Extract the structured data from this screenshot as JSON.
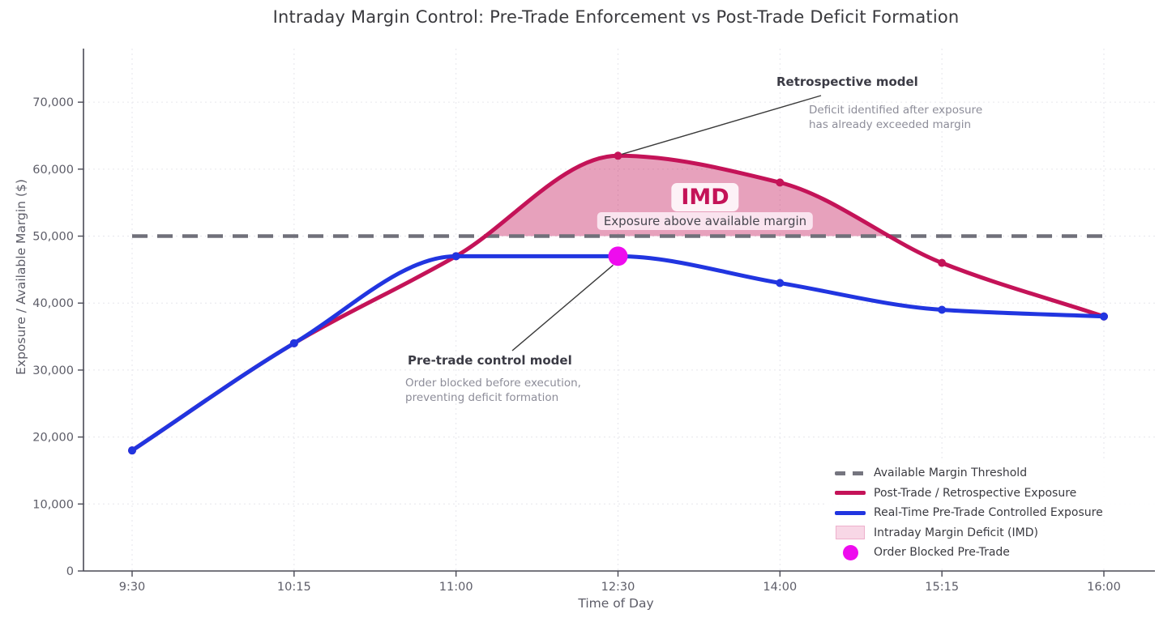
{
  "title": "Intraday Margin Control: Pre-Trade Enforcement vs Post-Trade Deficit Formation",
  "chart_data": {
    "type": "line",
    "title": "Intraday Margin Control: Pre-Trade Enforcement vs Post-Trade Deficit Formation",
    "xlabel": "Time of Day",
    "ylabel": "Exposure / Available Margin ($)",
    "categories": [
      "9:30",
      "10:15",
      "11:00",
      "12:30",
      "14:00",
      "15:15",
      "16:00"
    ],
    "y_ticks": [
      {
        "value": 0,
        "label": "0"
      },
      {
        "value": 10000,
        "label": "10,000"
      },
      {
        "value": 20000,
        "label": "20,000"
      },
      {
        "value": 30000,
        "label": "30,000"
      },
      {
        "value": 40000,
        "label": "40,000"
      },
      {
        "value": 50000,
        "label": "50,000"
      },
      {
        "value": 60000,
        "label": "60,000"
      },
      {
        "value": 70000,
        "label": "70,000"
      }
    ],
    "ylim": [
      0,
      78000
    ],
    "grid": true,
    "legend_position": "lower right",
    "threshold": {
      "value": 50000,
      "label": "Available Margin Threshold",
      "color": "#70707a"
    },
    "series": [
      {
        "name": "Post-Trade / Retrospective Exposure",
        "color": "#c41358",
        "values": [
          18000,
          34000,
          47000,
          62000,
          58000,
          46000,
          38000
        ]
      },
      {
        "name": "Real-Time Pre-Trade Controlled Exposure",
        "color": "#2135e0",
        "values": [
          18000,
          34000,
          47000,
          47000,
          43000,
          39000,
          38000
        ]
      }
    ],
    "deficit_fill": {
      "label": "Intraday Margin Deficit (IMD)",
      "color": "rgba(196,19,88,0.40)"
    },
    "blocked_point": {
      "label": "Order Blocked Pre-Trade",
      "time": "12:30",
      "value": 47000,
      "color": "#ee0cee"
    },
    "legend": [
      {
        "label": "Available Margin Threshold",
        "swatch": "dashed-line",
        "color": "#75757f"
      },
      {
        "label": "Post-Trade / Retrospective Exposure",
        "swatch": "line",
        "color": "#c41358"
      },
      {
        "label": "Real-Time Pre-Trade Controlled Exposure",
        "swatch": "line",
        "color": "#2135e0"
      },
      {
        "label": "Intraday Margin Deficit (IMD)",
        "swatch": "rect",
        "color": "#f8d7e6"
      },
      {
        "label": "Order Blocked Pre-Trade",
        "swatch": "dot",
        "color": "#ee0cee"
      }
    ],
    "annotations": [
      {
        "id": "retrospective",
        "title": "Retrospective model",
        "body": "Deficit identified after exposure\nhas already exceeded margin",
        "target_time": "12:30",
        "target_value": 62000
      },
      {
        "id": "pretrade",
        "title": "Pre-trade control model",
        "body": "Order blocked before execution,\npreventing deficit formation",
        "target_time": "12:30",
        "target_value": 47000
      }
    ],
    "imd_label": {
      "title": "IMD",
      "subtitle": "Exposure above available margin",
      "color": "#c41358"
    }
  }
}
